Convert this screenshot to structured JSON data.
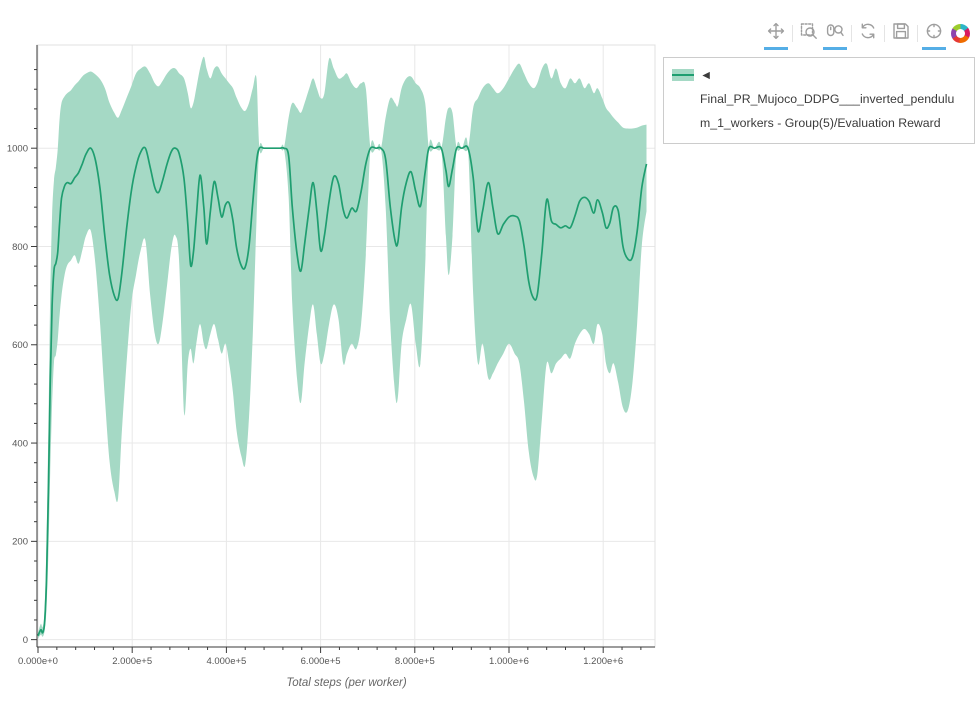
{
  "toolbar": {
    "tools": [
      {
        "name": "pan",
        "active": true
      },
      {
        "name": "box-zoom",
        "active": false
      },
      {
        "name": "wheel-zoom",
        "active": true
      },
      {
        "name": "reset",
        "active": false
      },
      {
        "name": "save",
        "active": false
      },
      {
        "name": "hover",
        "active": true
      },
      {
        "name": "bokeh-logo",
        "active": false
      }
    ],
    "active_underline_color": "#55aee6",
    "icon_color": "#9e9e9e"
  },
  "legend": {
    "label": "◄ Final_PR_Mujoco_DDPG___inverted_pendulum_1_workers - Group(5)/Evaluation Reward"
  },
  "chart_data": {
    "type": "line",
    "subtype": "mean-line-with-confidence-band",
    "title": "",
    "xlabel": "Total steps (per worker)",
    "ylabel": "",
    "xlim": [
      0,
      1310000
    ],
    "ylim": [
      -15,
      1210
    ],
    "grid": true,
    "legend_position": "outside-right",
    "x_ticks": [
      {
        "value": 0,
        "label": "0.000e+0"
      },
      {
        "value": 200000,
        "label": "2.000e+5"
      },
      {
        "value": 400000,
        "label": "4.000e+5"
      },
      {
        "value": 600000,
        "label": "6.000e+5"
      },
      {
        "value": 800000,
        "label": "8.000e+5"
      },
      {
        "value": 1000000,
        "label": "1.000e+6"
      },
      {
        "value": 1200000,
        "label": "1.200e+6"
      }
    ],
    "y_ticks": [
      {
        "value": 0,
        "label": "0"
      },
      {
        "value": 200,
        "label": "200"
      },
      {
        "value": 400,
        "label": "400"
      },
      {
        "value": 600,
        "label": "600"
      },
      {
        "value": 800,
        "label": "800"
      },
      {
        "value": 1000,
        "label": "1000"
      }
    ],
    "minor_x_step": 40000,
    "minor_y_step": 40,
    "colors": {
      "line": "#1f9e70",
      "band": "#a5d9c5",
      "grid": "#e8e8e8",
      "outline": "#e0e0e0",
      "axis": "#3a3a3a",
      "tick_label": "#555555",
      "axis_label": "#666666"
    },
    "series": [
      {
        "name": "Final_PR_Mujoco_DDPG___inverted_pendulum_1_workers - Group(5)/Evaluation Reward",
        "x_k": [
          0,
          6,
          10,
          14,
          18,
          22,
          26,
          30,
          34,
          38,
          42,
          46,
          50,
          56,
          62,
          70,
          78,
          86,
          94,
          102,
          112,
          122,
          132,
          142,
          152,
          162,
          170,
          178,
          188,
          198,
          208,
          218,
          228,
          238,
          248,
          256,
          264,
          274,
          284,
          292,
          300,
          310,
          318,
          324,
          330,
          336,
          344,
          352,
          358,
          366,
          374,
          382,
          390,
          398,
          406,
          414,
          422,
          432,
          440,
          448,
          456,
          464,
          470,
          480,
          492,
          504,
          514,
          522,
          532,
          540,
          550,
          558,
          566,
          576,
          584,
          592,
          600,
          608,
          618,
          628,
          638,
          648,
          656,
          666,
          676,
          686,
          696,
          706,
          718,
          728,
          738,
          748,
          758,
          764,
          772,
          782,
          792,
          802,
          812,
          822,
          830,
          842,
          856,
          866,
          872,
          880,
          889,
          900,
          913,
          924,
          934,
          944,
          956,
          966,
          976,
          988,
          1000,
          1012,
          1022,
          1032,
          1042,
          1052,
          1060,
          1070,
          1080,
          1090,
          1100,
          1110,
          1120,
          1130,
          1140,
          1150,
          1160,
          1170,
          1180,
          1188,
          1198,
          1206,
          1214,
          1222,
          1232,
          1242,
          1252,
          1262,
          1272,
          1282,
          1292
        ],
        "mean": [
          8,
          20,
          14,
          35,
          120,
          300,
          520,
          680,
          752,
          766,
          790,
          850,
          898,
          922,
          930,
          928,
          940,
          950,
          968,
          988,
          1000,
          975,
          915,
          820,
          742,
          700,
          694,
          745,
          835,
          912,
          962,
          992,
          1000,
          962,
          920,
          910,
          932,
          968,
          995,
          1000,
          988,
          938,
          845,
          762,
          788,
          860,
          945,
          880,
          805,
          872,
          932,
          900,
          860,
          885,
          888,
          852,
          795,
          760,
          758,
          800,
          890,
          972,
          1000,
          1000,
          1000,
          1000,
          1000,
          1000,
          985,
          880,
          785,
          750,
          805,
          880,
          930,
          872,
          792,
          822,
          892,
          942,
          928,
          875,
          858,
          878,
          872,
          912,
          968,
          1000,
          1000,
          1000,
          978,
          880,
          812,
          808,
          880,
          930,
          952,
          912,
          882,
          952,
          1000,
          1000,
          1000,
          955,
          922,
          958,
          1000,
          1000,
          1000,
          940,
          832,
          872,
          930,
          878,
          826,
          845,
          860,
          862,
          852,
          800,
          728,
          695,
          702,
          790,
          895,
          852,
          845,
          838,
          842,
          838,
          862,
          892,
          900,
          892,
          868,
          895,
          870,
          838,
          848,
          880,
          872,
          800,
          775,
          778,
          830,
          920,
          968
        ],
        "lower": [
          2,
          10,
          6,
          18,
          62,
          175,
          340,
          480,
          565,
          580,
          612,
          662,
          700,
          740,
          762,
          772,
          782,
          765,
          792,
          822,
          832,
          762,
          640,
          490,
          362,
          302,
          288,
          422,
          562,
          682,
          742,
          792,
          812,
          702,
          622,
          602,
          642,
          722,
          802,
          822,
          762,
          462,
          562,
          592,
          562,
          602,
          642,
          602,
          592,
          622,
          642,
          612,
          582,
          602,
          562,
          502,
          422,
          372,
          356,
          452,
          622,
          852,
          1000,
          1000,
          1000,
          1000,
          1000,
          1000,
          902,
          682,
          532,
          482,
          562,
          642,
          682,
          622,
          562,
          582,
          642,
          682,
          652,
          562,
          582,
          602,
          592,
          642,
          782,
          1000,
          1000,
          1000,
          882,
          642,
          502,
          492,
          602,
          652,
          682,
          602,
          562,
          762,
          1000,
          1000,
          1000,
          822,
          742,
          822,
          1000,
          1000,
          1000,
          702,
          562,
          602,
          532,
          542,
          562,
          582,
          602,
          582,
          562,
          482,
          382,
          332,
          336,
          452,
          562,
          542,
          562,
          572,
          582,
          572,
          602,
          622,
          632,
          622,
          602,
          642,
          622,
          562,
          542,
          562,
          522,
          472,
          466,
          522,
          642,
          802,
          872
        ],
        "upper": [
          14,
          32,
          26,
          62,
          200,
          430,
          700,
          865,
          935,
          962,
          1000,
          1062,
          1092,
          1105,
          1112,
          1118,
          1128,
          1136,
          1146,
          1152,
          1156,
          1150,
          1140,
          1122,
          1092,
          1072,
          1062,
          1078,
          1102,
          1126,
          1152,
          1162,
          1166,
          1152,
          1132,
          1126,
          1136,
          1152,
          1162,
          1162,
          1152,
          1142,
          1112,
          1082,
          1092,
          1122,
          1162,
          1186,
          1162,
          1142,
          1162,
          1166,
          1152,
          1142,
          1132,
          1122,
          1102,
          1082,
          1076,
          1092,
          1122,
          1142,
          1000,
          1000,
          1000,
          1000,
          1000,
          1000,
          1062,
          1092,
          1082,
          1072,
          1092,
          1122,
          1142,
          1122,
          1102,
          1112,
          1182,
          1162,
          1142,
          1146,
          1152,
          1132,
          1122,
          1132,
          1122,
          1000,
          1000,
          1000,
          1062,
          1102,
          1092,
          1086,
          1122,
          1142,
          1146,
          1132,
          1122,
          1092,
          1000,
          1000,
          1000,
          1062,
          1082,
          1072,
          1000,
          1000,
          1000,
          1082,
          1102,
          1122,
          1132,
          1122,
          1112,
          1122,
          1142,
          1162,
          1172,
          1152,
          1132,
          1122,
          1132,
          1162,
          1172,
          1142,
          1162,
          1132,
          1122,
          1142,
          1132,
          1142,
          1122,
          1132,
          1112,
          1122,
          1102,
          1082,
          1072,
          1062,
          1052,
          1042,
          1040,
          1040,
          1042,
          1046,
          1048
        ]
      }
    ],
    "notes": "x_k values are steps in thousands; mean reaches flat plateaus at max reward 1000 where the band collapses to the line"
  }
}
